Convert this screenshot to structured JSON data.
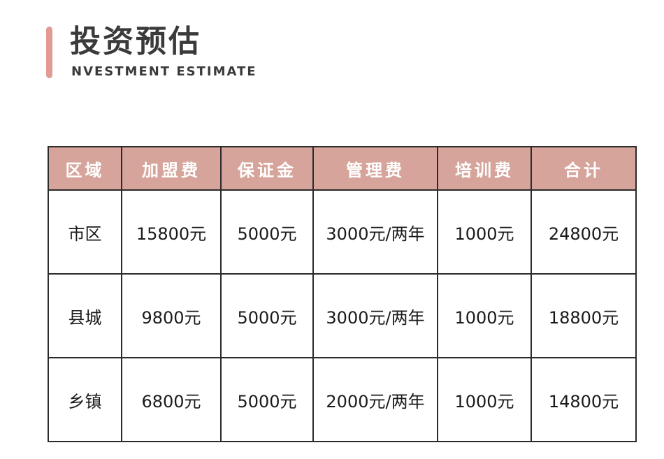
{
  "header": {
    "title": "投资预估",
    "subtitle": "NVESTMENT ESTIMATE",
    "accent_color": "#e29a94"
  },
  "table": {
    "header_color": "#d6a49b",
    "columns": [
      "区域",
      "加盟费",
      "保证金",
      "管理费",
      "培训费",
      "合计"
    ],
    "rows": [
      [
        "市区",
        "15800元",
        "5000元",
        "3000元/两年",
        "1000元",
        "24800元"
      ],
      [
        "县城",
        "9800元",
        "5000元",
        "3000元/两年",
        "1000元",
        "18800元"
      ],
      [
        "乡镇",
        "6800元",
        "5000元",
        "2000元/两年",
        "1000元",
        "14800元"
      ]
    ]
  }
}
